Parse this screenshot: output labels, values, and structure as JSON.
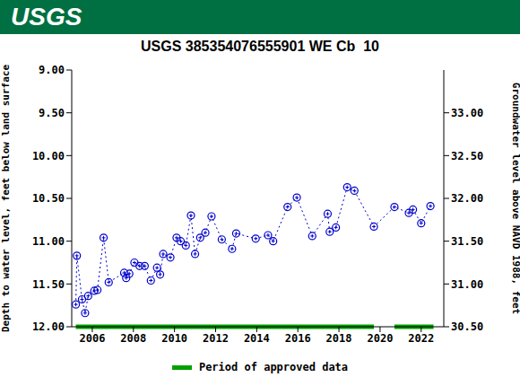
{
  "header": {
    "logo": "USGS"
  },
  "chart_data": {
    "type": "line",
    "title": "USGS 385354076555901 WE Cb  10",
    "y_label": "Depth to water level, feet below land surface",
    "y2_label": "Groundwater level above NAVD 1988, feet",
    "xlim": [
      2005.0,
      2023.1
    ],
    "xticks": [
      2006,
      2008,
      2010,
      2012,
      2014,
      2016,
      2018,
      2020,
      2022
    ],
    "ylim": [
      12,
      9
    ],
    "yticks": [
      {
        "value": 9,
        "label": "9.00"
      },
      {
        "value": 9.5,
        "label": "9.50"
      },
      {
        "value": 10,
        "label": "10.00"
      },
      {
        "value": 10.5,
        "label": "10.50"
      },
      {
        "value": 11,
        "label": "11.00"
      },
      {
        "value": 11.5,
        "label": "11.50"
      },
      {
        "value": 12,
        "label": "12.00"
      }
    ],
    "y2lim": [
      30.5,
      33.5
    ],
    "y2ticks": [
      {
        "value": 30.5,
        "label": "30.50"
      },
      {
        "value": 31,
        "label": "31.00"
      },
      {
        "value": 31.5,
        "label": "31.50"
      },
      {
        "value": 32,
        "label": "32.00"
      },
      {
        "value": 32.5,
        "label": "32.50"
      },
      {
        "value": 33,
        "label": "33.00"
      }
    ],
    "grid": false,
    "legend": "bottom",
    "x": [
      2005.2,
      2005.25,
      2005.5,
      2005.65,
      2005.8,
      2006.1,
      2006.25,
      2006.55,
      2006.8,
      2007.55,
      2007.65,
      2007.8,
      2008.05,
      2008.3,
      2008.55,
      2008.85,
      2009.15,
      2009.3,
      2009.45,
      2009.8,
      2010.1,
      2010.3,
      2010.55,
      2010.8,
      2011.0,
      2011.25,
      2011.5,
      2011.8,
      2012.3,
      2012.8,
      2013.0,
      2013.95,
      2014.55,
      2014.8,
      2015.5,
      2015.95,
      2016.7,
      2017.45,
      2017.55,
      2017.85,
      2018.4,
      2018.75,
      2019.7,
      2020.7,
      2021.4,
      2021.6,
      2022.0,
      2022.45
    ],
    "series": [
      {
        "color": "#0000cc",
        "marker": "circle",
        "line_style": "dotted",
        "values": [
          11.74,
          11.17,
          11.68,
          11.84,
          11.64,
          11.58,
          11.57,
          10.96,
          11.48,
          11.37,
          11.43,
          11.38,
          11.25,
          11.29,
          11.29,
          11.46,
          11.31,
          11.39,
          11.15,
          11.19,
          10.96,
          11.0,
          11.05,
          10.7,
          11.15,
          10.96,
          10.9,
          10.71,
          10.98,
          11.09,
          10.91,
          10.97,
          10.93,
          11.0,
          10.6,
          10.49,
          10.94,
          10.68,
          10.89,
          10.84,
          10.37,
          10.41,
          10.83,
          10.6,
          10.67,
          10.63,
          10.79,
          10.59
        ]
      }
    ],
    "approved_periods": {
      "name": "Period of approved data",
      "color": "#00a000",
      "ranges": [
        [
          2005.2,
          2019.7
        ],
        [
          2020.7,
          2022.6
        ]
      ]
    }
  }
}
